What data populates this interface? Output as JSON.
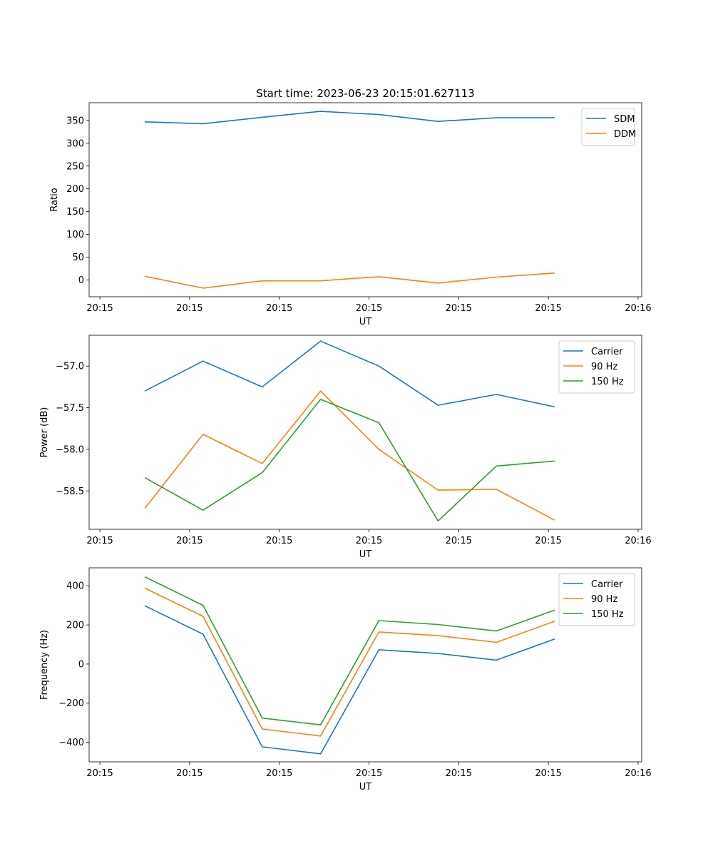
{
  "title": "Start time: 2023-06-23 20:15:01.627113",
  "colors": {
    "blue": "#1f77b4",
    "orange": "#ff7f0e",
    "green": "#2ca02c"
  },
  "chart_data": [
    {
      "type": "line",
      "ylabel": "Ratio",
      "xlabel": "UT",
      "x_tick_labels": [
        "20:15",
        "20:15",
        "20:15",
        "20:15",
        "20:15",
        "20:15",
        "20:16"
      ],
      "x_tick_positions": [
        0,
        1,
        2,
        3,
        4,
        5,
        6
      ],
      "xlim": [
        -0.12,
        6.04
      ],
      "x": [
        0.5,
        1.15,
        1.81,
        2.46,
        3.11,
        3.77,
        4.42,
        5.07
      ],
      "ylim": [
        -37,
        389
      ],
      "yticks": [
        0,
        50,
        100,
        150,
        200,
        250,
        300,
        350
      ],
      "legend_position": "upper right",
      "series": [
        {
          "name": "SDM",
          "color": "#1f77b4",
          "values": [
            347,
            343,
            357,
            370,
            363,
            348,
            356,
            356
          ]
        },
        {
          "name": "DDM",
          "color": "#ff7f0e",
          "values": [
            8,
            -18,
            -2,
            -2,
            7,
            -7,
            6,
            15
          ]
        }
      ]
    },
    {
      "type": "line",
      "ylabel": "Power (dB)",
      "xlabel": "UT",
      "x_tick_labels": [
        "20:15",
        "20:15",
        "20:15",
        "20:15",
        "20:15",
        "20:15",
        "20:16"
      ],
      "x_tick_positions": [
        0,
        1,
        2,
        3,
        4,
        5,
        6
      ],
      "xlim": [
        -0.12,
        6.04
      ],
      "x": [
        0.5,
        1.15,
        1.81,
        2.46,
        3.11,
        3.77,
        4.42,
        5.07
      ],
      "ylim": [
        -58.96,
        -56.63
      ],
      "yticks": [
        -58.5,
        -58.0,
        -57.5,
        -57.0
      ],
      "ytick_labels": [
        "−58.5",
        "−58.0",
        "−57.5",
        "−57.0"
      ],
      "legend_position": "upper right",
      "series": [
        {
          "name": "Carrier",
          "color": "#1f77b4",
          "values": [
            -57.3,
            -56.94,
            -57.25,
            -56.7,
            -57.0,
            -57.47,
            -57.34,
            -57.49
          ]
        },
        {
          "name": "90 Hz",
          "color": "#ff7f0e",
          "values": [
            -58.71,
            -57.82,
            -58.17,
            -57.3,
            -58.0,
            -58.49,
            -58.48,
            -58.85
          ]
        },
        {
          "name": "150 Hz",
          "color": "#2ca02c",
          "values": [
            -58.34,
            -58.73,
            -58.28,
            -57.4,
            -57.68,
            -58.86,
            -58.2,
            -58.14
          ]
        }
      ]
    },
    {
      "type": "line",
      "ylabel": "Frequency (Hz)",
      "xlabel": "UT",
      "x_tick_labels": [
        "20:15",
        "20:15",
        "20:15",
        "20:15",
        "20:15",
        "20:15",
        "20:16"
      ],
      "x_tick_positions": [
        0,
        1,
        2,
        3,
        4,
        5,
        6
      ],
      "xlim": [
        -0.12,
        6.04
      ],
      "x": [
        0.5,
        1.15,
        1.81,
        2.46,
        3.11,
        3.77,
        4.42,
        5.07
      ],
      "ylim": [
        -500,
        492
      ],
      "yticks": [
        -400,
        -200,
        0,
        200,
        400
      ],
      "ytick_labels": [
        "−400",
        "−200",
        "0",
        "200",
        "400"
      ],
      "legend_position": "upper right",
      "series": [
        {
          "name": "Carrier",
          "color": "#1f77b4",
          "values": [
            298,
            153,
            -423,
            -459,
            73,
            54,
            20,
            128
          ]
        },
        {
          "name": "90 Hz",
          "color": "#ff7f0e",
          "values": [
            388,
            244,
            -332,
            -368,
            164,
            145,
            111,
            219
          ]
        },
        {
          "name": "150 Hz",
          "color": "#2ca02c",
          "values": [
            446,
            300,
            -276,
            -311,
            222,
            202,
            169,
            276
          ]
        }
      ]
    }
  ]
}
